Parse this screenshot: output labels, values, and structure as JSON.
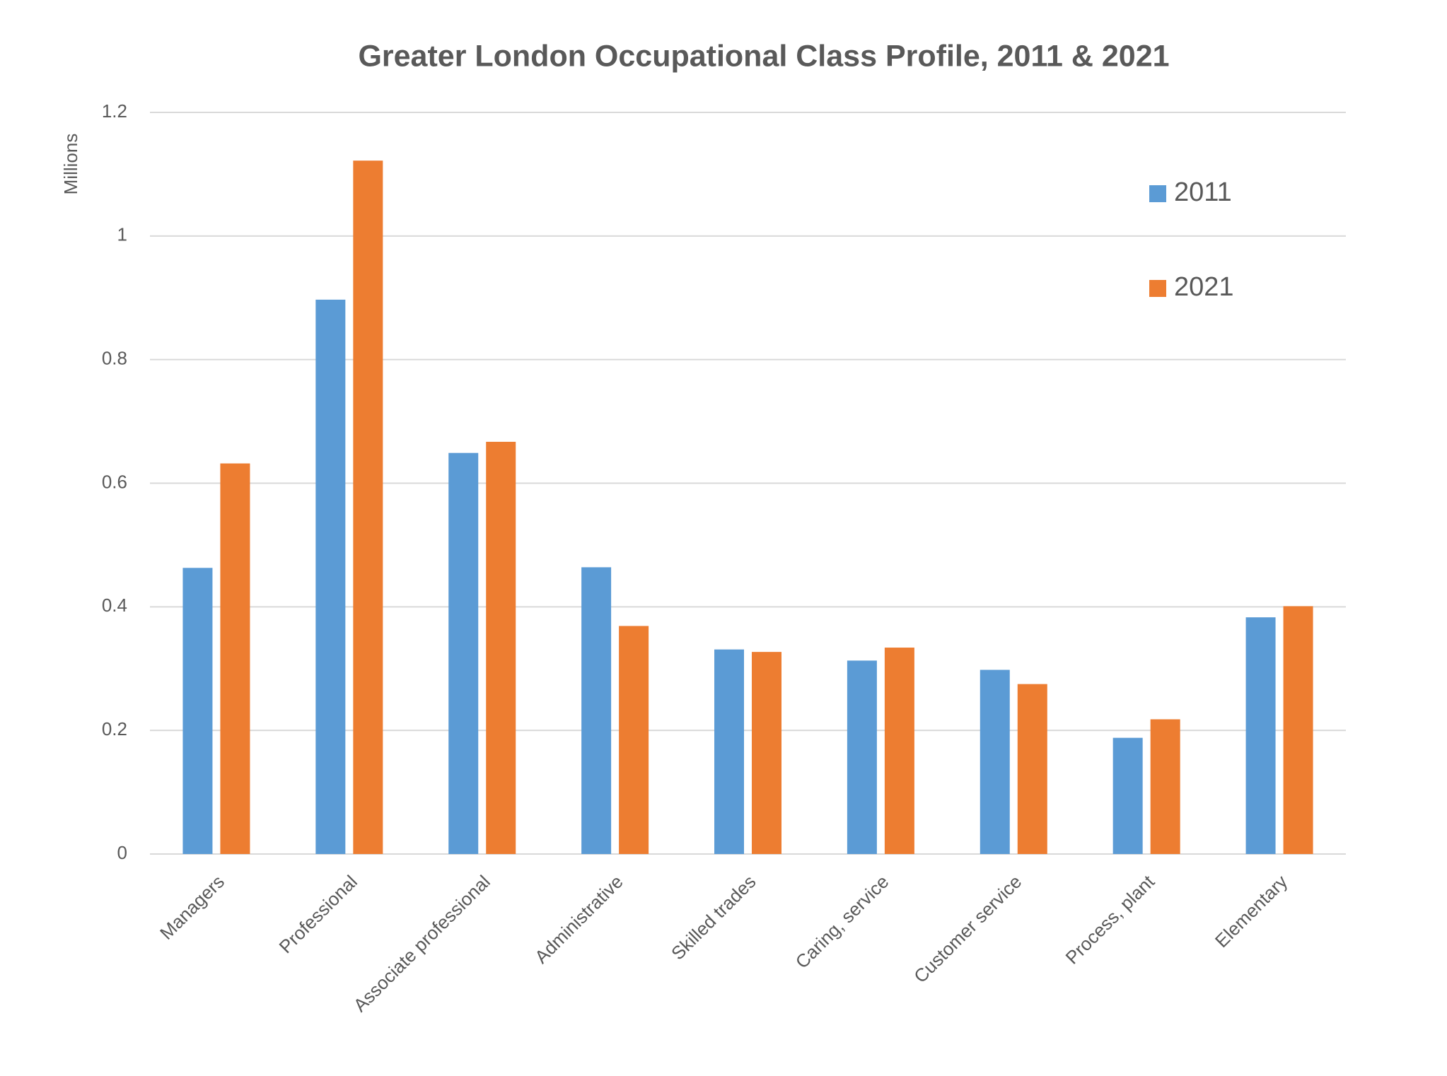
{
  "chart_data": {
    "type": "bar",
    "title": "Greater London Occupational Class Profile, 2011 & 2021",
    "y_label": "Millions",
    "categories": [
      "Managers",
      "Professional",
      "Associate professional",
      "Administrative",
      "Skilled trades",
      "Caring, service",
      "Customer service",
      "Process, plant",
      "Elementary"
    ],
    "series": [
      {
        "name": "2011",
        "color": "#5b9bd5",
        "values": [
          0.463,
          0.897,
          0.649,
          0.464,
          0.331,
          0.313,
          0.298,
          0.188,
          0.383
        ]
      },
      {
        "name": "2021",
        "color": "#ed7d31",
        "values": [
          0.632,
          1.122,
          0.667,
          0.369,
          0.327,
          0.334,
          0.275,
          0.218,
          0.401
        ]
      }
    ],
    "ylim": [
      0,
      1.2
    ],
    "yticks": [
      0,
      0.2,
      0.4,
      0.6,
      0.8,
      1,
      1.2
    ],
    "grid": true,
    "legend": "upper right"
  }
}
